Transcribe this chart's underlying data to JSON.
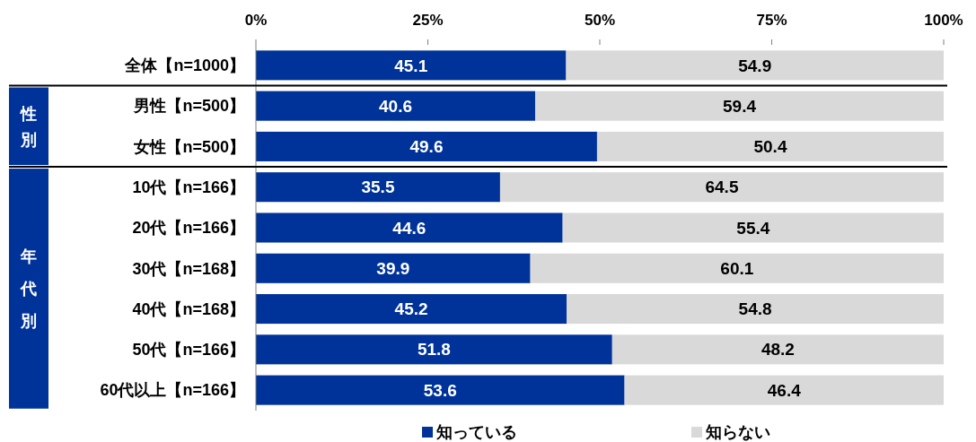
{
  "chart_data": {
    "type": "bar",
    "orientation": "horizontal",
    "stacked": true,
    "categories": [
      "全体【n=1000】",
      "男性【n=500】",
      "女性【n=500】",
      "10代【n=166】",
      "20代【n=166】",
      "30代【n=168】",
      "40代【n=168】",
      "50代【n=166】",
      "60代以上【n=166】"
    ],
    "series": [
      {
        "name": "知っている",
        "color": "#003399",
        "values": [
          45.1,
          40.6,
          49.6,
          35.5,
          44.6,
          39.9,
          45.2,
          51.8,
          53.6
        ]
      },
      {
        "name": "知らない",
        "color": "#d9d9d9",
        "values": [
          54.9,
          59.4,
          50.4,
          64.5,
          55.4,
          60.1,
          54.8,
          48.2,
          46.4
        ]
      }
    ],
    "xlim": [
      0,
      100
    ],
    "xticks": [
      {
        "value": 0,
        "label": "0%"
      },
      {
        "value": 25,
        "label": "25%"
      },
      {
        "value": 50,
        "label": "50%"
      },
      {
        "value": 75,
        "label": "75%"
      },
      {
        "value": 100,
        "label": "100%"
      }
    ],
    "data_labels": true,
    "legend": "bottom",
    "annotations": [
      "性別",
      "年代別"
    ]
  }
}
